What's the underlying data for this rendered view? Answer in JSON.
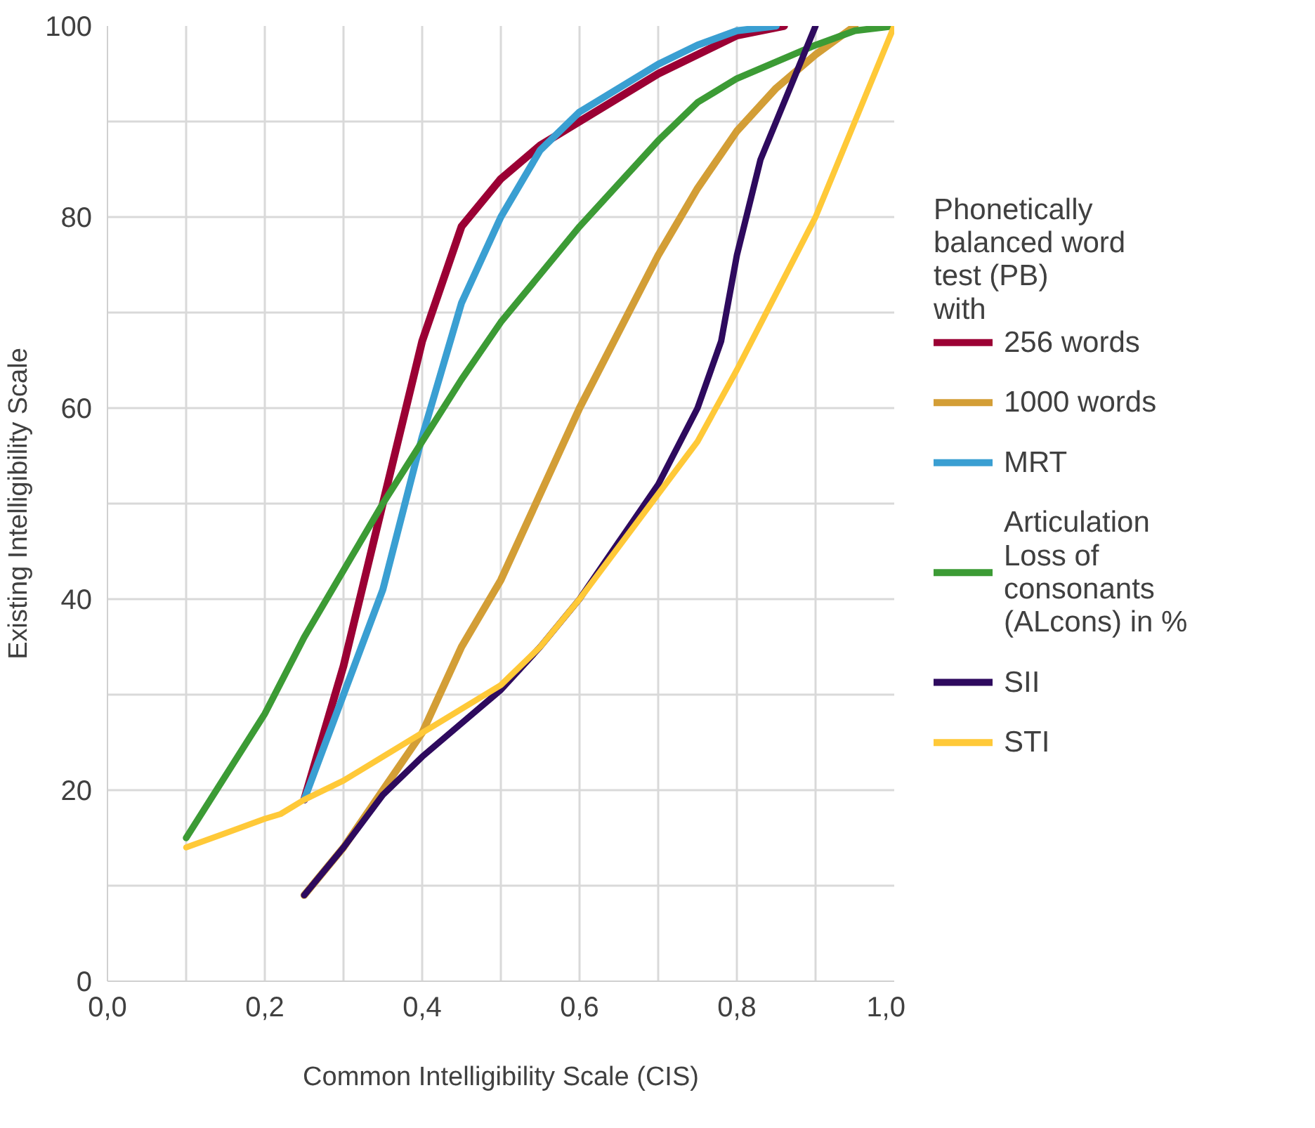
{
  "chart_data": {
    "type": "line",
    "xlabel": "Common Intelligibility Scale (CIS)",
    "ylabel": "Existing Intelligibility Scale",
    "legend_title": "Phonetically balanced word test (PB) with",
    "legend": "right",
    "grid": true,
    "marker": "none",
    "line_style": "solid",
    "xlim": [
      0,
      1
    ],
    "ylim": [
      0,
      100
    ],
    "xticks": [
      {
        "value": 0,
        "label": "0,0"
      },
      {
        "value": 0.1,
        "label": null
      },
      {
        "value": 0.2,
        "label": "0,2"
      },
      {
        "value": 0.3,
        "label": null
      },
      {
        "value": 0.4,
        "label": "0,4"
      },
      {
        "value": 0.5,
        "label": null
      },
      {
        "value": 0.6,
        "label": "0,6"
      },
      {
        "value": 0.7,
        "label": null
      },
      {
        "value": 0.8,
        "label": "0,8"
      },
      {
        "value": 0.9,
        "label": null
      },
      {
        "value": 1,
        "label": "1,0"
      }
    ],
    "yticks": [
      0,
      {
        "value": 10,
        "label": null
      },
      20,
      {
        "value": 30,
        "label": null
      },
      40,
      {
        "value": 50,
        "label": null
      },
      60,
      {
        "value": 70,
        "label": null
      },
      80,
      {
        "value": 90,
        "label": null
      },
      100
    ],
    "series": [
      {
        "name": "256 words",
        "color": "#9b0034",
        "x": [
          0.25,
          0.3,
          0.35,
          0.4,
          0.45,
          0.5,
          0.55,
          0.6,
          0.7,
          0.8,
          0.86
        ],
        "values": [
          19,
          33,
          50,
          67,
          79,
          84,
          87.5,
          90,
          95,
          99,
          100
        ]
      },
      {
        "name": "1000 words",
        "color": "#d39e36",
        "x": [
          0.25,
          0.3,
          0.35,
          0.4,
          0.45,
          0.5,
          0.55,
          0.6,
          0.65,
          0.7,
          0.75,
          0.8,
          0.85,
          0.9,
          0.95
        ],
        "values": [
          9,
          14,
          20,
          26,
          35,
          42,
          51,
          60,
          68,
          76,
          83,
          89,
          93.5,
          97,
          100
        ]
      },
      {
        "name": "MRT",
        "color": "#3a9fd2",
        "x": [
          0.25,
          0.3,
          0.35,
          0.4,
          0.45,
          0.5,
          0.55,
          0.6,
          0.65,
          0.7,
          0.75,
          0.8,
          0.85
        ],
        "values": [
          19,
          30,
          41,
          57,
          71,
          80,
          87,
          91,
          93.5,
          96,
          98,
          99.5,
          100
        ]
      },
      {
        "name": "Articulation Loss of consonants (ALcons) in %",
        "color": "#3c9b35",
        "x": [
          0.1,
          0.2,
          0.25,
          0.3,
          0.35,
          0.4,
          0.45,
          0.5,
          0.6,
          0.7,
          0.75,
          0.8,
          0.9,
          0.95,
          1.0
        ],
        "values": [
          15,
          28,
          36,
          43,
          50,
          56.5,
          63,
          69,
          79,
          88,
          92,
          94.5,
          98,
          99.5,
          100
        ]
      },
      {
        "name": "SII",
        "color": "#2e0a5e",
        "x": [
          0.25,
          0.3,
          0.35,
          0.4,
          0.5,
          0.55,
          0.6,
          0.65,
          0.7,
          0.75,
          0.78,
          0.8,
          0.83,
          0.87,
          0.9
        ],
        "values": [
          9,
          14,
          19.5,
          23.5,
          30.5,
          35,
          40,
          46,
          52,
          60,
          67,
          76,
          86,
          94,
          100
        ]
      },
      {
        "name": "STI",
        "color": "#ffc938",
        "x": [
          0.1,
          0.15,
          0.2,
          0.22,
          0.25,
          0.3,
          0.35,
          0.4,
          0.5,
          0.55,
          0.6,
          0.65,
          0.7,
          0.75,
          0.8,
          0.85,
          0.9,
          0.95,
          1.0
        ],
        "values": [
          14,
          15.5,
          17,
          17.5,
          19,
          21,
          23.5,
          26,
          31,
          35,
          40,
          45.5,
          51,
          56.5,
          64,
          72,
          80,
          90,
          100
        ]
      }
    ]
  }
}
